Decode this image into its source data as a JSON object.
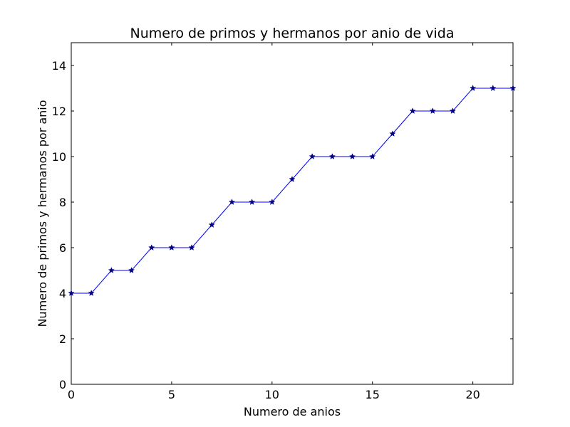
{
  "chart_data": {
    "type": "line",
    "title": "Numero de primos y hermanos por anio de vida",
    "xlabel": "Numero de anios",
    "ylabel": "Numero de primos y hermanos por anio",
    "xlim": [
      0,
      22
    ],
    "ylim": [
      0,
      15
    ],
    "xticks": [
      0,
      5,
      10,
      15,
      20
    ],
    "yticks": [
      0,
      2,
      4,
      6,
      8,
      10,
      12,
      14
    ],
    "grid": false,
    "line_color": "#0000ff",
    "marker": "star",
    "marker_color": "#000080",
    "series": [
      {
        "x": [
          0,
          1,
          2,
          3,
          4,
          5,
          6,
          7,
          8,
          9,
          10,
          11,
          12,
          13,
          14,
          15,
          16,
          17,
          18,
          19,
          20,
          21,
          22
        ],
        "values": [
          4,
          4,
          5,
          5,
          6,
          6,
          6,
          7,
          8,
          8,
          8,
          9,
          10,
          10,
          10,
          10,
          11,
          12,
          12,
          12,
          13,
          13,
          13
        ]
      }
    ]
  }
}
